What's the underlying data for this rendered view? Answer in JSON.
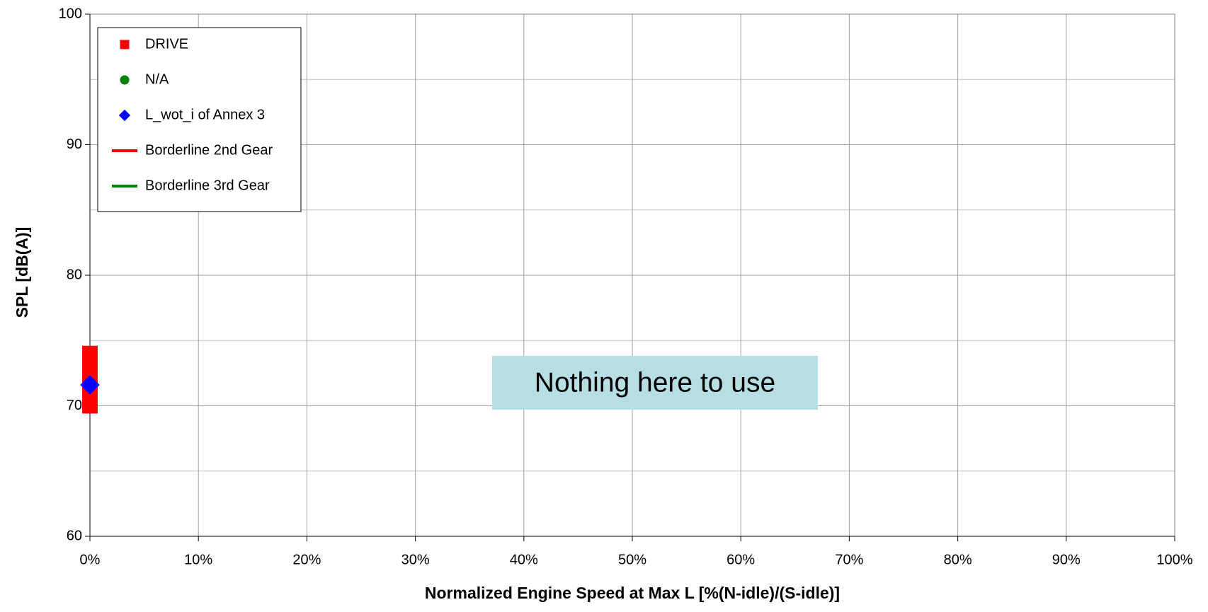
{
  "chart_data": {
    "type": "scatter",
    "xlabel": "Normalized Engine Speed at Max L [%(N-idle)/(S-idle)]",
    "ylabel": "SPL [dB(A)]",
    "xlim": [
      0,
      100
    ],
    "ylim": [
      60,
      100
    ],
    "xticks": [
      {
        "value": 0,
        "label": "0%"
      },
      {
        "value": 10,
        "label": "10%"
      },
      {
        "value": 20,
        "label": "20%"
      },
      {
        "value": 30,
        "label": "30%"
      },
      {
        "value": 40,
        "label": "40%"
      },
      {
        "value": 50,
        "label": "50%"
      },
      {
        "value": 60,
        "label": "60%"
      },
      {
        "value": 70,
        "label": "70%"
      },
      {
        "value": 80,
        "label": "80%"
      },
      {
        "value": 90,
        "label": "90%"
      },
      {
        "value": 100,
        "label": "100%"
      }
    ],
    "yticks": [
      60,
      70,
      80,
      90,
      100
    ],
    "yminorticks": [
      65,
      75,
      85,
      95
    ],
    "grid": true,
    "legend": "upper left",
    "annotation": "Nothing here to use",
    "series": [
      {
        "name": "DRIVE",
        "color": "#ff0000",
        "marker": "square",
        "x": [
          0,
          0,
          0,
          0,
          0
        ],
        "values": [
          74,
          73,
          72,
          71,
          70
        ]
      },
      {
        "name": "N/A",
        "color": "#008000",
        "marker": "circle",
        "x": [],
        "values": []
      },
      {
        "name": "L_wot_i of Annex 3",
        "color": "#0000ff",
        "marker": "diamond",
        "x": [
          0
        ],
        "values": [
          71.6
        ]
      },
      {
        "name": "Borderline 2nd Gear",
        "color": "#ff0000",
        "marker": "line",
        "x": [],
        "values": []
      },
      {
        "name": "Borderline 3rd Gear",
        "color": "#008000",
        "marker": "line",
        "x": [],
        "values": []
      }
    ]
  }
}
